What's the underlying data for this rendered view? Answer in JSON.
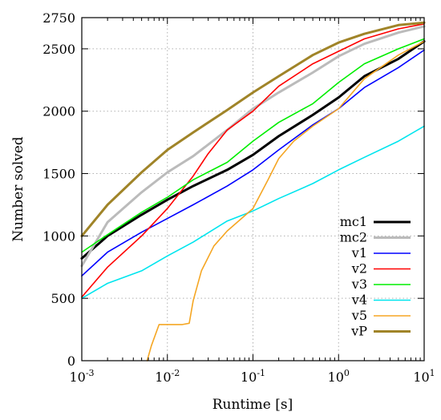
{
  "chart_data": {
    "type": "line",
    "xlabel": "Runtime [s]",
    "ylabel": "Number solved",
    "x_scale": "log",
    "xlim": [
      0.001,
      10
    ],
    "ylim": [
      0,
      2750
    ],
    "x_ticks": [
      {
        "value": 0.001,
        "base": "10",
        "exp": "-3"
      },
      {
        "value": 0.01,
        "base": "10",
        "exp": "-2"
      },
      {
        "value": 0.1,
        "base": "10",
        "exp": "-1"
      },
      {
        "value": 1,
        "base": "10",
        "exp": "0"
      },
      {
        "value": 10,
        "base": "10",
        "exp": "1"
      }
    ],
    "y_ticks": [
      {
        "value": 0,
        "label": "0"
      },
      {
        "value": 500,
        "label": "500"
      },
      {
        "value": 1000,
        "label": "1000"
      },
      {
        "value": 1500,
        "label": "1500"
      },
      {
        "value": 2000,
        "label": "2000"
      },
      {
        "value": 2500,
        "label": "2500"
      },
      {
        "value": 2750,
        "label": "2750"
      }
    ],
    "grid": true,
    "legend_position": "bottom-right",
    "series": [
      {
        "name": "mc1",
        "color": "#000000",
        "width": 3,
        "points": [
          [
            0.001,
            820
          ],
          [
            0.002,
            1000
          ],
          [
            0.005,
            1170
          ],
          [
            0.01,
            1290
          ],
          [
            0.02,
            1400
          ],
          [
            0.05,
            1530
          ],
          [
            0.1,
            1650
          ],
          [
            0.2,
            1800
          ],
          [
            0.5,
            1970
          ],
          [
            1,
            2110
          ],
          [
            2,
            2280
          ],
          [
            5,
            2420
          ],
          [
            10,
            2560
          ]
        ]
      },
      {
        "name": "mc2",
        "color": "#bbbbbb",
        "width": 3,
        "points": [
          [
            0.001,
            760
          ],
          [
            0.002,
            1110
          ],
          [
            0.005,
            1350
          ],
          [
            0.01,
            1510
          ],
          [
            0.02,
            1640
          ],
          [
            0.05,
            1850
          ],
          [
            0.1,
            2020
          ],
          [
            0.2,
            2150
          ],
          [
            0.5,
            2310
          ],
          [
            1,
            2440
          ],
          [
            2,
            2540
          ],
          [
            5,
            2630
          ],
          [
            10,
            2680
          ]
        ]
      },
      {
        "name": "v1",
        "color": "#0000ff",
        "width": 1.6,
        "points": [
          [
            0.001,
            680
          ],
          [
            0.002,
            870
          ],
          [
            0.005,
            1030
          ],
          [
            0.01,
            1140
          ],
          [
            0.02,
            1250
          ],
          [
            0.05,
            1400
          ],
          [
            0.1,
            1530
          ],
          [
            0.2,
            1690
          ],
          [
            0.5,
            1890
          ],
          [
            1,
            2020
          ],
          [
            2,
            2190
          ],
          [
            5,
            2350
          ],
          [
            10,
            2490
          ]
        ]
      },
      {
        "name": "v2",
        "color": "#ff0000",
        "width": 1.6,
        "points": [
          [
            0.001,
            510
          ],
          [
            0.002,
            750
          ],
          [
            0.005,
            1000
          ],
          [
            0.01,
            1220
          ],
          [
            0.02,
            1480
          ],
          [
            0.03,
            1660
          ],
          [
            0.05,
            1850
          ],
          [
            0.1,
            2000
          ],
          [
            0.2,
            2200
          ],
          [
            0.5,
            2380
          ],
          [
            1,
            2480
          ],
          [
            2,
            2580
          ],
          [
            5,
            2660
          ],
          [
            10,
            2700
          ]
        ]
      },
      {
        "name": "v3",
        "color": "#00ee00",
        "width": 1.6,
        "points": [
          [
            0.001,
            870
          ],
          [
            0.002,
            1010
          ],
          [
            0.005,
            1190
          ],
          [
            0.01,
            1310
          ],
          [
            0.02,
            1450
          ],
          [
            0.05,
            1590
          ],
          [
            0.1,
            1760
          ],
          [
            0.2,
            1910
          ],
          [
            0.5,
            2060
          ],
          [
            1,
            2230
          ],
          [
            2,
            2380
          ],
          [
            5,
            2500
          ],
          [
            10,
            2580
          ]
        ]
      },
      {
        "name": "v4",
        "color": "#00e5ee",
        "width": 1.6,
        "points": [
          [
            0.001,
            500
          ],
          [
            0.002,
            620
          ],
          [
            0.005,
            720
          ],
          [
            0.01,
            840
          ],
          [
            0.02,
            950
          ],
          [
            0.05,
            1120
          ],
          [
            0.1,
            1200
          ],
          [
            0.2,
            1300
          ],
          [
            0.5,
            1420
          ],
          [
            1,
            1530
          ],
          [
            2,
            1630
          ],
          [
            5,
            1760
          ],
          [
            10,
            1880
          ]
        ]
      },
      {
        "name": "v5",
        "color": "#f5a623",
        "width": 1.6,
        "points": [
          [
            0.0058,
            0
          ],
          [
            0.0065,
            120
          ],
          [
            0.008,
            290
          ],
          [
            0.01,
            290
          ],
          [
            0.012,
            290
          ],
          [
            0.015,
            290
          ],
          [
            0.018,
            300
          ],
          [
            0.02,
            480
          ],
          [
            0.025,
            720
          ],
          [
            0.035,
            920
          ],
          [
            0.05,
            1040
          ],
          [
            0.1,
            1220
          ],
          [
            0.15,
            1450
          ],
          [
            0.2,
            1620
          ],
          [
            0.3,
            1760
          ],
          [
            0.5,
            1880
          ],
          [
            1,
            2020
          ],
          [
            2,
            2260
          ],
          [
            5,
            2450
          ],
          [
            10,
            2560
          ]
        ]
      },
      {
        "name": "vP",
        "color": "#a08428",
        "width": 3,
        "points": [
          [
            0.001,
            1000
          ],
          [
            0.002,
            1250
          ],
          [
            0.005,
            1510
          ],
          [
            0.01,
            1690
          ],
          [
            0.02,
            1830
          ],
          [
            0.05,
            2010
          ],
          [
            0.1,
            2150
          ],
          [
            0.2,
            2280
          ],
          [
            0.5,
            2450
          ],
          [
            1,
            2550
          ],
          [
            2,
            2620
          ],
          [
            5,
            2690
          ],
          [
            10,
            2710
          ]
        ]
      }
    ]
  }
}
